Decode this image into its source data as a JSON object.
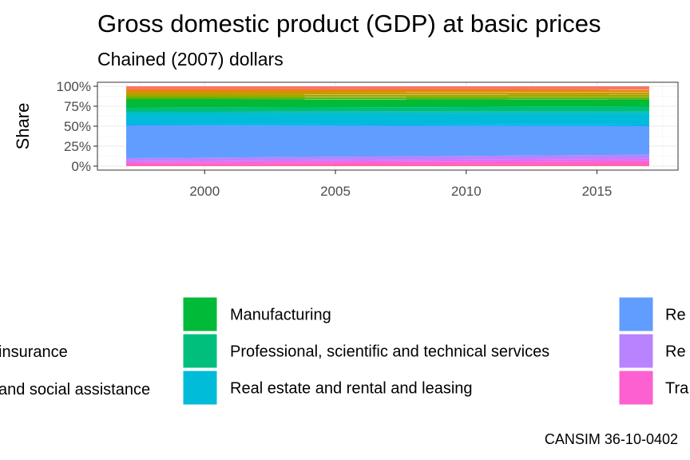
{
  "chart_data": {
    "type": "area",
    "stacked": "fill",
    "title": "Gross domestic product (GDP) at basic prices",
    "subtitle": "Chained (2007) dollars",
    "xlabel": "",
    "ylabel": "Share",
    "caption": "CANSIM 36-10-0402",
    "x": [
      1997,
      2017
    ],
    "xlim": [
      1995.9,
      2018.1
    ],
    "ylim": [
      0,
      1
    ],
    "x_ticks": [
      2000,
      2005,
      2010,
      2015
    ],
    "y_ticks": [
      {
        "value": 0,
        "label": "0%"
      },
      {
        "value": 0.25,
        "label": "25%"
      },
      {
        "value": 0.5,
        "label": "50%"
      },
      {
        "value": 0.75,
        "label": "75%"
      },
      {
        "value": 1,
        "label": "100%"
      }
    ],
    "grid": true,
    "legend_position": "bottom",
    "series": [
      {
        "color": "#F8766D",
        "values": [
          0.04,
          0.04
        ]
      },
      {
        "color": "#E58700",
        "values": [
          0.03,
          0.03
        ]
      },
      {
        "color": "#C99800",
        "values": [
          0.03,
          0.03
        ]
      },
      {
        "color": "#A3A500",
        "values": [
          0.03,
          0.03
        ]
      },
      {
        "color": "#6BB100",
        "values": [
          0.03,
          0.03
        ]
      },
      {
        "color": "#00BA38",
        "name": "Manufacturing",
        "values": [
          0.11,
          0.09
        ]
      },
      {
        "color": "#00BF7D",
        "name": "Professional, scientific and technical services",
        "values": [
          0.05,
          0.06
        ]
      },
      {
        "color": "#00C0AF",
        "values": [
          0.02,
          0.02
        ]
      },
      {
        "color": "#00BCD8",
        "name": "Real estate and rental and leasing",
        "values": [
          0.13,
          0.14
        ]
      },
      {
        "color": "#00B0F6",
        "values": [
          0.02,
          0.02
        ]
      },
      {
        "color": "#619CFF",
        "name": "Re",
        "values": [
          0.41,
          0.35
        ]
      },
      {
        "color": "#B983FF",
        "name": "Re",
        "values": [
          0.04,
          0.05
        ]
      },
      {
        "color": "#E76BF3",
        "values": [
          0.02,
          0.03
        ]
      },
      {
        "color": "#FD61D1",
        "name": "Tra",
        "values": [
          0.02,
          0.03
        ]
      },
      {
        "color": "#FF67A4",
        "values": [
          0.02,
          0.03
        ]
      }
    ],
    "legend_partial_labels": [
      "insurance",
      "and social assistance"
    ]
  }
}
